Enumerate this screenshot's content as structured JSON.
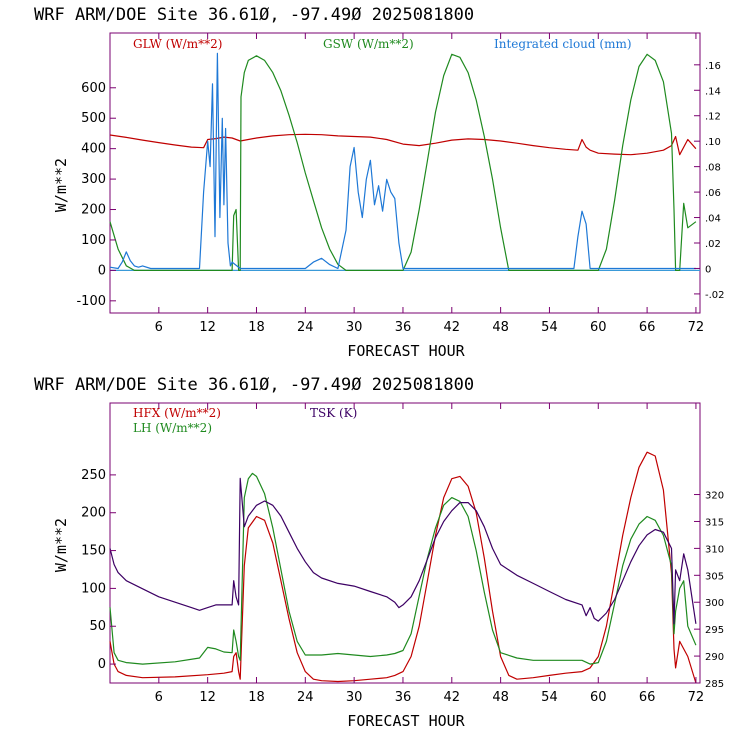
{
  "colors": {
    "red": "#c00000",
    "green": "#1f8a1f",
    "blue": "#1e78d6",
    "purple": "#3c0064",
    "axis": "#000000",
    "frame": "#7a0070"
  },
  "chart_data": [
    {
      "type": "line",
      "title": "WRF  ARM/DOE Site  36.61Ø, -97.49Ø  2025081800",
      "xlabel": "FORECAST HOUR",
      "ylabel": "W/m**2",
      "xlim": [
        0,
        72.5
      ],
      "ylim": [
        -140,
        780
      ],
      "y2lim": [
        -0.035,
        0.185
      ],
      "xticks": [
        6,
        12,
        18,
        24,
        30,
        36,
        42,
        48,
        54,
        60,
        66,
        72
      ],
      "yticks": [
        -100,
        0,
        100,
        200,
        300,
        400,
        500,
        600
      ],
      "ytick_labels": [
        "-100",
        "0",
        "100",
        "200",
        "300",
        "400",
        "500",
        "600"
      ],
      "y2ticks": [
        -0.02,
        0,
        0.02,
        0.04,
        0.06,
        0.08,
        0.1,
        0.12,
        0.14,
        0.16
      ],
      "y2tick_labels": [
        "-.02",
        "0",
        ".02",
        ".04",
        ".06",
        ".08",
        ".10",
        ".12",
        ".14",
        ".16"
      ],
      "zero_line": true,
      "legend": [
        "GLW (W/m**2)",
        "GSW (W/m**2)",
        "Integrated cloud (mm)"
      ],
      "series": [
        {
          "name": "GLW (W/m**2)",
          "axis": "left",
          "color": "red",
          "x": [
            0,
            2,
            4,
            6,
            8,
            10,
            11.5,
            12,
            13,
            14,
            15,
            16,
            17,
            18,
            20,
            22,
            24,
            26,
            28,
            30,
            32,
            34,
            36,
            38,
            40,
            42,
            44,
            46,
            48,
            50,
            52,
            54,
            56,
            57.5,
            58,
            58.5,
            59,
            60,
            62,
            64,
            66,
            68,
            69,
            69.5,
            70,
            71,
            72
          ],
          "y": [
            445,
            437,
            428,
            420,
            412,
            405,
            403,
            430,
            433,
            438,
            435,
            425,
            430,
            435,
            442,
            446,
            447,
            446,
            442,
            440,
            438,
            430,
            415,
            410,
            418,
            428,
            432,
            430,
            425,
            418,
            410,
            403,
            398,
            395,
            430,
            405,
            395,
            385,
            382,
            380,
            385,
            395,
            410,
            440,
            380,
            430,
            400
          ]
        },
        {
          "name": "GSW (W/m**2)",
          "axis": "left",
          "color": "green",
          "x": [
            0,
            1,
            2,
            3,
            4,
            5,
            6,
            8,
            10,
            12,
            14,
            15,
            15.2,
            15.5,
            15.8,
            16,
            16.1,
            16.5,
            17,
            18,
            19,
            20,
            21,
            22,
            23,
            24,
            25,
            26,
            27,
            28,
            29,
            30,
            31,
            32,
            33,
            34,
            35,
            35.5,
            36,
            37,
            38,
            39,
            40,
            41,
            42,
            43,
            44,
            45,
            46,
            47,
            48,
            49,
            50,
            52,
            54,
            56,
            58,
            59.5,
            60,
            61,
            62,
            63,
            64,
            65,
            66,
            67,
            68,
            69,
            69.3,
            69.5,
            70,
            70.5,
            71,
            72
          ],
          "y": [
            160,
            70,
            15,
            0,
            0,
            0,
            0,
            0,
            0,
            0,
            0,
            0,
            180,
            200,
            0,
            0,
            570,
            650,
            690,
            705,
            690,
            650,
            590,
            510,
            420,
            320,
            230,
            140,
            70,
            20,
            0,
            0,
            0,
            0,
            0,
            0,
            0,
            0,
            0,
            60,
            200,
            360,
            520,
            640,
            710,
            700,
            650,
            560,
            440,
            300,
            140,
            0,
            0,
            0,
            0,
            0,
            0,
            0,
            0,
            70,
            230,
            410,
            560,
            670,
            710,
            690,
            620,
            450,
            200,
            0,
            0,
            220,
            140,
            160
          ]
        },
        {
          "name": "Integrated cloud (mm)",
          "axis": "right",
          "color": "blue",
          "x": [
            0,
            1,
            1.5,
            2,
            2.5,
            3,
            3.5,
            4,
            5,
            8,
            11,
            11.5,
            12,
            12.3,
            12.6,
            12.9,
            13.2,
            13.5,
            13.8,
            14,
            14.2,
            14.5,
            14.8,
            15,
            16,
            20,
            24,
            25,
            26,
            27,
            28,
            29,
            29.5,
            30,
            30.5,
            31,
            31.5,
            32,
            32.5,
            33,
            33.5,
            34,
            34.5,
            35,
            35.5,
            36,
            40,
            50,
            57,
            57.5,
            58,
            58.5,
            59,
            59.5,
            60,
            65,
            70,
            72
          ],
          "y": [
            0.001,
            0,
            0.005,
            0.013,
            0.006,
            0.002,
            0.001,
            0.002,
            0,
            0,
            0,
            0.06,
            0.1,
            0.08,
            0.145,
            0.025,
            0.169,
            0.04,
            0.118,
            0.05,
            0.11,
            0.02,
            0.002,
            0.005,
            0,
            0,
            0,
            0.005,
            0.008,
            0.003,
            0,
            0.03,
            0.08,
            0.095,
            0.06,
            0.04,
            0.07,
            0.085,
            0.05,
            0.065,
            0.045,
            0.07,
            0.06,
            0.055,
            0.02,
            0,
            0,
            0,
            0,
            0.025,
            0.045,
            0.035,
            0,
            0,
            0,
            0,
            0,
            0
          ]
        }
      ]
    },
    {
      "type": "line",
      "title": "WRF  ARM/DOE Site  36.61Ø, -97.49Ø  2025081800",
      "xlabel": "FORECAST HOUR",
      "ylabel": "W/m**2",
      "xlim": [
        0,
        72.5
      ],
      "ylim": [
        -25,
        345
      ],
      "y2lim": [
        285,
        337
      ],
      "xticks": [
        6,
        12,
        18,
        24,
        30,
        36,
        42,
        48,
        54,
        60,
        66,
        72
      ],
      "yticks": [
        0,
        50,
        100,
        150,
        200,
        250
      ],
      "ytick_labels": [
        "0",
        "50",
        "100",
        "150",
        "200",
        "250"
      ],
      "y2ticks": [
        285,
        290,
        295,
        300,
        305,
        310,
        315,
        320
      ],
      "y2tick_labels": [
        "285",
        "290",
        "295",
        "300",
        "305",
        "310",
        "315",
        "320"
      ],
      "zero_line": false,
      "legend": [
        "HFX (W/m**2)",
        "LH  (W/m**2)",
        "TSK (K)"
      ],
      "series": [
        {
          "name": "HFX (W/m**2)",
          "axis": "left",
          "color": "red",
          "x": [
            0,
            0.5,
            1,
            2,
            4,
            8,
            12,
            14,
            15,
            15.2,
            15.5,
            15.8,
            16,
            16.5,
            17,
            18,
            19,
            20,
            21,
            22,
            23,
            24,
            25,
            26,
            28,
            30,
            32,
            34,
            35,
            36,
            37,
            38,
            39,
            40,
            41,
            42,
            43,
            44,
            45,
            46,
            47,
            48,
            49,
            50,
            52,
            54,
            56,
            58,
            59,
            60,
            61,
            62,
            63,
            64,
            65,
            66,
            67,
            68,
            69,
            69.3,
            69.5,
            70,
            70.5,
            71,
            72
          ],
          "y": [
            30,
            0,
            -10,
            -15,
            -18,
            -17,
            -14,
            -12,
            -10,
            10,
            15,
            -10,
            -20,
            130,
            180,
            195,
            190,
            160,
            110,
            60,
            15,
            -10,
            -20,
            -22,
            -23,
            -22,
            -20,
            -18,
            -15,
            -10,
            10,
            50,
            110,
            170,
            220,
            245,
            248,
            235,
            200,
            140,
            70,
            10,
            -15,
            -20,
            -18,
            -15,
            -12,
            -10,
            -5,
            10,
            50,
            110,
            170,
            220,
            260,
            280,
            275,
            230,
            120,
            20,
            -5,
            30,
            20,
            10,
            -25
          ]
        },
        {
          "name": "LH  (W/m**2)",
          "axis": "left",
          "color": "green",
          "x": [
            0,
            0.5,
            1,
            2,
            4,
            8,
            11,
            12,
            13,
            14,
            15,
            15.2,
            15.5,
            15.8,
            16,
            16.5,
            17,
            17.5,
            18,
            19,
            20,
            21,
            22,
            23,
            24,
            25,
            26,
            28,
            30,
            32,
            34,
            35,
            36,
            37,
            38,
            39,
            40,
            41,
            42,
            43,
            44,
            45,
            46,
            47,
            48,
            50,
            52,
            54,
            56,
            58,
            59,
            60,
            61,
            62,
            63,
            64,
            65,
            66,
            67,
            68,
            69,
            69.3,
            69.5,
            70,
            70.5,
            71,
            72
          ],
          "y": [
            75,
            15,
            5,
            2,
            0,
            3,
            8,
            22,
            20,
            16,
            15,
            45,
            30,
            10,
            5,
            220,
            245,
            252,
            248,
            225,
            180,
            125,
            70,
            30,
            12,
            12,
            12,
            14,
            12,
            10,
            12,
            14,
            18,
            40,
            90,
            140,
            180,
            210,
            220,
            215,
            195,
            150,
            95,
            45,
            15,
            8,
            5,
            5,
            5,
            5,
            0,
            2,
            30,
            80,
            130,
            165,
            185,
            195,
            190,
            170,
            130,
            40,
            70,
            100,
            110,
            50,
            25
          ]
        },
        {
          "name": "TSK (K)",
          "axis": "right",
          "color": "purple",
          "x": [
            0,
            0.5,
            1,
            2,
            4,
            6,
            8,
            10,
            11,
            12,
            13,
            14,
            15,
            15.2,
            15.5,
            15.8,
            16,
            16.5,
            17,
            18,
            19,
            20,
            21,
            22,
            23,
            24,
            25,
            26,
            28,
            30,
            32,
            34,
            35,
            35.5,
            36,
            37,
            38,
            39,
            40,
            41,
            42,
            43,
            44,
            45,
            46,
            47,
            48,
            50,
            52,
            54,
            56,
            58,
            58.5,
            59,
            59.5,
            60,
            61,
            62,
            63,
            64,
            65,
            66,
            67,
            68,
            69,
            69.3,
            69.5,
            70,
            70.5,
            71,
            72
          ],
          "y": [
            310,
            307,
            305.5,
            304,
            302.5,
            301,
            300,
            299,
            298.5,
            299,
            299.5,
            299.5,
            299.5,
            304,
            301,
            299.5,
            323,
            314,
            316,
            318,
            318.8,
            318,
            316,
            313,
            310,
            307.5,
            305.5,
            304.5,
            303.5,
            303,
            302,
            301,
            300,
            299,
            299.5,
            301,
            304,
            308,
            312,
            315,
            317,
            318.5,
            318.5,
            317,
            314,
            310,
            307,
            305,
            303.5,
            302,
            300.5,
            299.5,
            297.5,
            299,
            297,
            296.5,
            298,
            300.5,
            304,
            307.5,
            310.5,
            312.5,
            313.5,
            313,
            310,
            296,
            306,
            304,
            309,
            306,
            296
          ]
        }
      ]
    }
  ]
}
